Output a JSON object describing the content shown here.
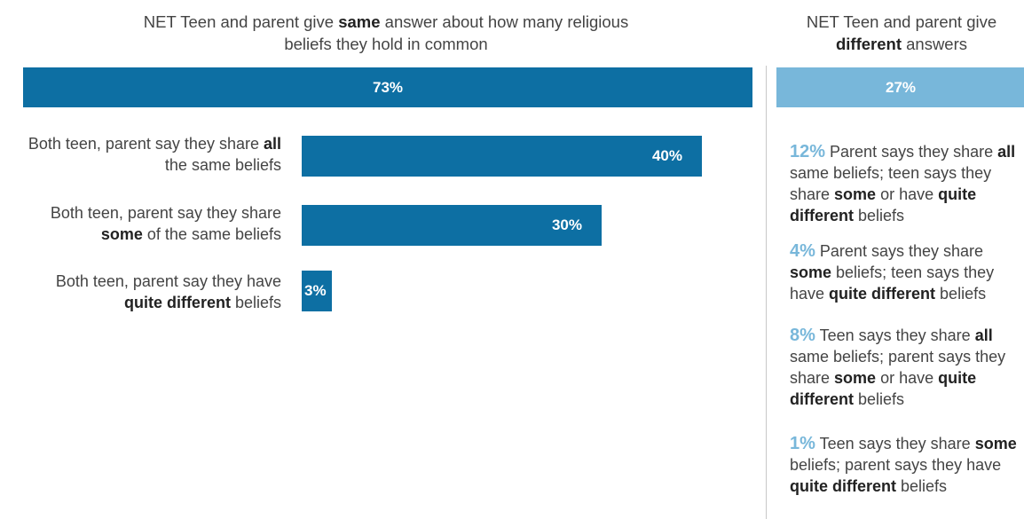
{
  "header_left": {
    "pre": "NET Teen and parent give ",
    "bold": "same",
    "post": " answer about how many religious beliefs they hold in common"
  },
  "header_right": {
    "pre": "NET Teen and parent give ",
    "bold": "different",
    "post": " answers"
  },
  "net_bars": {
    "same_label": "73%",
    "different_label": "27%"
  },
  "rows": [
    {
      "pre": "Both teen, parent say they share ",
      "bold": "all",
      "post": " the same beliefs",
      "value_label": "40%"
    },
    {
      "pre": "Both teen, parent say they share ",
      "bold": "some",
      "post": " of the same beliefs",
      "value_label": "30%"
    },
    {
      "pre": "Both teen, parent say they have ",
      "bold": "quite different",
      "post": " beliefs",
      "value_label": "3%"
    }
  ],
  "right_items": [
    {
      "pct": "12%",
      "t1": " Parent says they share ",
      "b1": "all",
      "t2": " same beliefs; teen says they share ",
      "b2": "some",
      "t3": " or have ",
      "b3": "quite different",
      "t4": " beliefs"
    },
    {
      "pct": "4%",
      "t1": " Parent says they share ",
      "b1": "some",
      "t2": " beliefs; teen says they have ",
      "b2": "quite different",
      "t3": " beliefs",
      "b3": "",
      "t4": ""
    },
    {
      "pct": "8%",
      "t1": " Teen says they share ",
      "b1": "all",
      "t2": " same beliefs; parent says they share ",
      "b2": "some",
      "t3": " or have ",
      "b3": "quite different",
      "t4": " beliefs"
    },
    {
      "pct": "1%",
      "t1": " Teen says they share ",
      "b1": "some",
      "t2": " beliefs; parent says they have ",
      "b2": "quite different",
      "t3": " beliefs",
      "b3": "",
      "t4": ""
    }
  ],
  "colors": {
    "dark_blue": "#0d6fa3",
    "light_blue": "#78b7da"
  },
  "chart_data": {
    "type": "bar",
    "orientation": "horizontal",
    "net_same": 73,
    "net_different": 27,
    "categories": [
      "Both teen, parent say they share all the same beliefs",
      "Both teen, parent say they share some of the same beliefs",
      "Both teen, parent say they have quite different beliefs"
    ],
    "values": [
      40,
      30,
      3
    ],
    "different_breakdown": [
      12,
      4,
      8,
      1
    ],
    "xlim": [
      0,
      73
    ]
  }
}
